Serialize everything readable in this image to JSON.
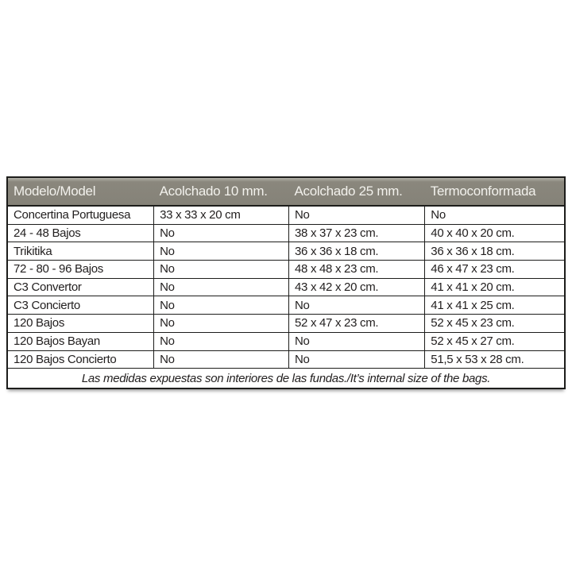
{
  "colors": {
    "header_bg": "#858278",
    "header_text": "#f2f1ec",
    "border": "#1d1d1b",
    "cell_text": "#232020",
    "page_bg": "#ffffff"
  },
  "table": {
    "columns": [
      "Modelo/Model",
      "Acolchado 10 mm.",
      "Acolchado 25 mm.",
      "Termoconformada"
    ],
    "rows": [
      [
        "Concertina Portuguesa",
        "33 x 33 x 20 cm",
        "No",
        "No"
      ],
      [
        "24 - 48 Bajos",
        "No",
        "38 x 37 x 23 cm.",
        "40 x 40 x 20 cm."
      ],
      [
        "Trikitika",
        "No",
        "36 x 36 x 18 cm.",
        "36 x 36 x 18 cm."
      ],
      [
        "72 - 80 - 96 Bajos",
        "No",
        "48 x 48 x 23 cm.",
        "46 x 47 x 23 cm."
      ],
      [
        "C3 Convertor",
        "No",
        "43 x 42 x 20 cm.",
        "41 x 41 x 20 cm."
      ],
      [
        "C3 Concierto",
        "No",
        "No",
        "41 x 41 x 25 cm."
      ],
      [
        "120 Bajos",
        "No",
        "52 x 47 x 23 cm.",
        "52 x 45 x 23 cm."
      ],
      [
        "120 Bajos Bayan",
        "No",
        "No",
        "52 x 45 x 27 cm."
      ],
      [
        "120 Bajos Concierto",
        "No",
        "No",
        "51,5 x 53 x 28 cm."
      ]
    ],
    "footer": "Las medidas expuestas son interiores de las fundas./It’s internal size of the bags."
  }
}
